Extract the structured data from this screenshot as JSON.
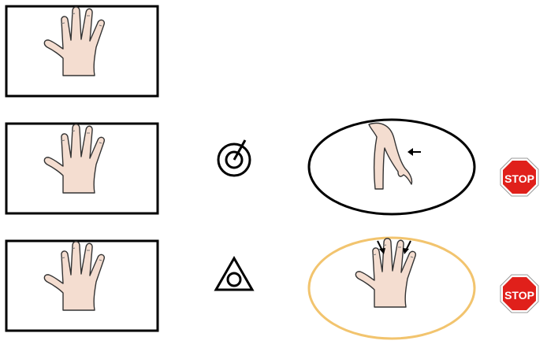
{
  "panels": [
    {
      "row": 1,
      "figure": "open-hand"
    },
    {
      "row": 2,
      "figure": "open-hand"
    },
    {
      "row": 3,
      "figure": "open-hand"
    }
  ],
  "row2": {
    "symbol": "target-circle-with-arrow-icon",
    "body_part": "arm-with-arrow",
    "ellipse_color": "#000000",
    "stop_sign": {
      "label": "STOP",
      "color": "#e0201b"
    }
  },
  "row3": {
    "symbol": "triangle-with-circle-icon",
    "body_part": "hand-with-two-finger-arrows",
    "ellipse_color": "#f2c46e",
    "stop_sign": {
      "label": "STOP",
      "color": "#e0201b"
    }
  },
  "colors": {
    "skin": "#f4ddd0",
    "outline": "#333333"
  }
}
